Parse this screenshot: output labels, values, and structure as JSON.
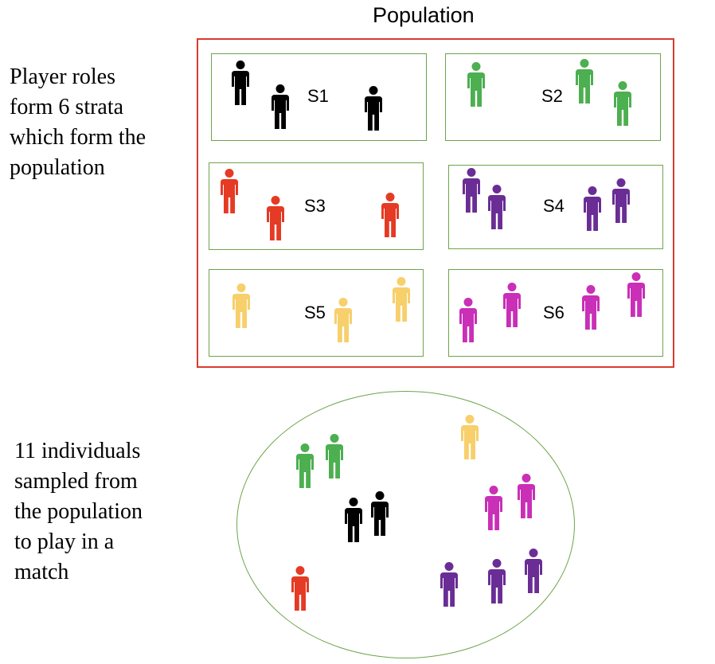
{
  "population_title": "Population",
  "strata_text": "Player roles\nform 6 strata\nwhich form the\npopulation",
  "sample_text": "11 individuals\nsampled from\nthe population\nto play in a\nmatch",
  "colors": {
    "population_border": "#d93b30",
    "strata_border": "#6fa34a",
    "S1": "#000000",
    "S2": "#4caf50",
    "S3": "#e53a24",
    "S4": "#6a2d95",
    "S5": "#f7cf6b",
    "S6": "#c92fb7"
  },
  "strata": [
    {
      "label": "S1",
      "stratum": "S1",
      "count": 3
    },
    {
      "label": "S2",
      "stratum": "S2",
      "count": 3
    },
    {
      "label": "S3",
      "stratum": "S3",
      "count": 3
    },
    {
      "label": "S4",
      "stratum": "S4",
      "count": 4
    },
    {
      "label": "S5",
      "stratum": "S5",
      "count": 3
    },
    {
      "label": "S6",
      "stratum": "S6",
      "count": 4
    }
  ],
  "sample": {
    "S1": 2,
    "S2": 2,
    "S3": 1,
    "S4": 3,
    "S5": 1,
    "S6": 2
  }
}
